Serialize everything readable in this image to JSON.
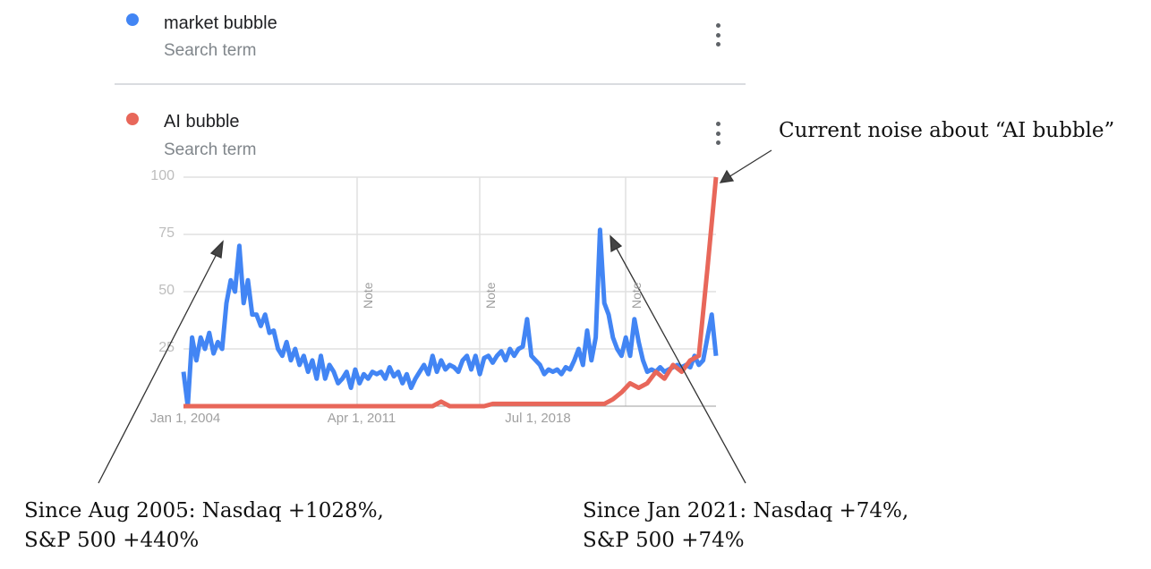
{
  "legend": [
    {
      "term": "market bubble",
      "subtitle": "Search term",
      "color": "#4285f4"
    },
    {
      "term": "AI bubble",
      "subtitle": "Search term",
      "color": "#e8675a"
    }
  ],
  "annotations": {
    "top_right": "Current noise about “AI bubble”",
    "bottom_left_line1": "Since Aug 2005: Nasdaq +1028%,",
    "bottom_left_line2": "S&P 500 +440%",
    "bottom_right_line1": "Since Jan 2021: Nasdaq +74%,",
    "bottom_right_line2": "S&P 500 +74%"
  },
  "chart_data": {
    "type": "line",
    "title": "",
    "xlabel": "",
    "ylabel": "",
    "ylim": [
      0,
      100
    ],
    "yticks": [
      "100",
      "75",
      "50",
      "25"
    ],
    "xticks": [
      "Jan 1, 2004",
      "Apr 1, 2011",
      "Jul 1, 2018"
    ],
    "notes": [
      "Note",
      "Note",
      "Note"
    ],
    "grid": true,
    "x_range": [
      "Jan 2004",
      "present"
    ],
    "series": [
      {
        "name": "market bubble",
        "color": "#4285f4",
        "values": [
          15,
          0,
          30,
          20,
          30,
          25,
          32,
          23,
          28,
          25,
          45,
          55,
          50,
          70,
          45,
          55,
          40,
          40,
          35,
          40,
          32,
          33,
          25,
          22,
          28,
          20,
          25,
          18,
          22,
          15,
          20,
          12,
          22,
          12,
          18,
          15,
          10,
          12,
          15,
          8,
          16,
          10,
          14,
          12,
          15,
          14,
          15,
          12,
          17,
          13,
          15,
          10,
          14,
          8,
          12,
          15,
          18,
          14,
          22,
          15,
          20,
          16,
          18,
          17,
          15,
          20,
          22,
          16,
          22,
          14,
          21,
          22,
          19,
          22,
          24,
          20,
          25,
          22,
          25,
          26,
          38,
          22,
          20,
          18,
          14,
          16,
          15,
          16,
          14,
          17,
          16,
          20,
          25,
          18,
          33,
          20,
          30,
          77,
          45,
          40,
          30,
          25,
          22,
          30,
          22,
          38,
          28,
          20,
          15,
          16,
          15,
          17,
          15,
          16,
          17,
          18,
          17,
          18,
          17,
          22,
          18,
          20,
          30,
          40,
          22
        ]
      },
      {
        "name": "AI bubble",
        "color": "#e8675a",
        "values": [
          0,
          0,
          0,
          0,
          0,
          0,
          0,
          0,
          0,
          0,
          0,
          0,
          0,
          0,
          0,
          0,
          0,
          0,
          0,
          0,
          0,
          0,
          0,
          0,
          0,
          0,
          0,
          0,
          0,
          0,
          2,
          0,
          0,
          0,
          0,
          0,
          1,
          1,
          1,
          1,
          1,
          1,
          1,
          1,
          1,
          1,
          1,
          1,
          1,
          1,
          3,
          6,
          10,
          8,
          10,
          15,
          12,
          18,
          15,
          20,
          22,
          60,
          100
        ]
      }
    ]
  }
}
